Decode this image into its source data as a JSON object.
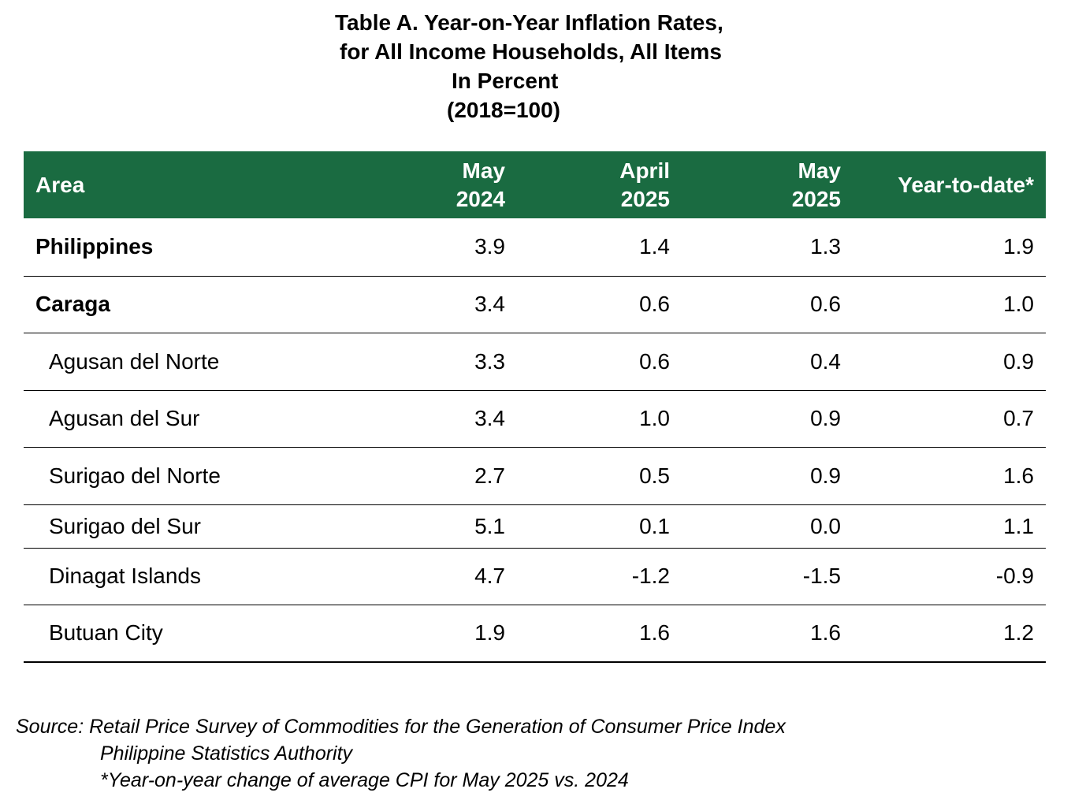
{
  "title": {
    "line1": "Table A. Year-on-Year Inflation Rates,",
    "line2": "for All Income Households, All Items",
    "line3": "In Percent",
    "line4": "(2018=100)"
  },
  "table": {
    "header_color": "#1a6b41",
    "columns": [
      {
        "line1": "Area",
        "line2": ""
      },
      {
        "line1": "May",
        "line2": "2024"
      },
      {
        "line1": "April",
        "line2": "2025"
      },
      {
        "line1": "May",
        "line2": "2025"
      },
      {
        "line1": "Year-to-date*",
        "line2": ""
      }
    ],
    "rows": [
      {
        "area": "Philippines",
        "may2024": "3.9",
        "apr2025": "1.4",
        "may2025": "1.3",
        "ytd": "1.9"
      },
      {
        "area": "Caraga",
        "may2024": "3.4",
        "apr2025": "0.6",
        "may2025": "0.6",
        "ytd": "1.0"
      },
      {
        "area": "Agusan del Norte",
        "may2024": "3.3",
        "apr2025": "0.6",
        "may2025": "0.4",
        "ytd": "0.9"
      },
      {
        "area": "Agusan del Sur",
        "may2024": "3.4",
        "apr2025": "1.0",
        "may2025": "0.9",
        "ytd": "0.7"
      },
      {
        "area": "Surigao del Norte",
        "may2024": "2.7",
        "apr2025": "0.5",
        "may2025": "0.9",
        "ytd": "1.6"
      },
      {
        "area": "Surigao del Sur",
        "may2024": "5.1",
        "apr2025": "0.1",
        "may2025": "0.0",
        "ytd": "1.1"
      },
      {
        "area": "Dinagat Islands",
        "may2024": "4.7",
        "apr2025": "-1.2",
        "may2025": "-1.5",
        "ytd": "-0.9"
      },
      {
        "area": "Butuan City",
        "may2024": "1.9",
        "apr2025": "1.6",
        "may2025": "1.6",
        "ytd": "1.2"
      }
    ]
  },
  "notes": {
    "source": "Source: Retail Price Survey of Commodities for the Generation of Consumer Price Index",
    "agency": "Philippine Statistics Authority",
    "footnote": "*Year-on-year change of average CPI for May 2025 vs. 2024"
  }
}
